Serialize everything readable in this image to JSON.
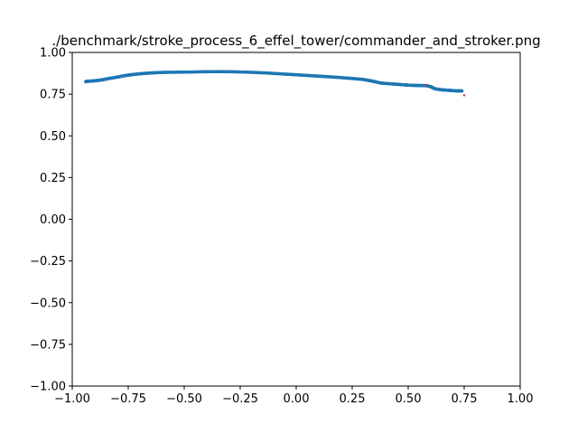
{
  "chart_data": {
    "type": "scatter",
    "title": "./benchmark/stroke_process_6_effel_tower/commander_and_stroker.png",
    "xlabel": "",
    "ylabel": "",
    "xlim": [
      -1.0,
      1.0
    ],
    "ylim": [
      -1.0,
      1.0
    ],
    "grid": false,
    "x_ticks": [
      -1.0,
      -0.75,
      -0.5,
      -0.25,
      0.0,
      0.25,
      0.5,
      0.75,
      1.0
    ],
    "x_tick_labels": [
      "−1.00",
      "−0.75",
      "−0.50",
      "−0.25",
      "0.00",
      "0.25",
      "0.50",
      "0.75",
      "1.00"
    ],
    "y_ticks": [
      -1.0,
      -0.75,
      -0.5,
      -0.25,
      0.0,
      0.25,
      0.5,
      0.75,
      1.0
    ],
    "y_tick_labels": [
      "−1.00",
      "−0.75",
      "−0.50",
      "−0.25",
      "0.00",
      "0.25",
      "0.50",
      "0.75",
      "1.00"
    ],
    "series": [
      {
        "color": "#1f77b4",
        "marker": "dot",
        "x": [
          -0.94,
          -0.93,
          -0.9,
          -0.87,
          -0.84,
          -0.8,
          -0.77,
          -0.74,
          -0.7,
          -0.66,
          -0.62,
          -0.58,
          -0.5,
          -0.42,
          -0.35,
          -0.28,
          -0.2,
          -0.12,
          -0.05,
          0.0,
          0.05,
          0.1,
          0.15,
          0.2,
          0.25,
          0.3,
          0.34,
          0.38,
          0.42,
          0.46,
          0.5,
          0.54,
          0.58,
          0.6,
          0.62,
          0.65,
          0.68,
          0.7,
          0.72,
          0.74
        ],
        "y": [
          0.825,
          0.827,
          0.83,
          0.835,
          0.843,
          0.852,
          0.86,
          0.866,
          0.872,
          0.876,
          0.879,
          0.881,
          0.882,
          0.884,
          0.885,
          0.884,
          0.881,
          0.876,
          0.87,
          0.866,
          0.862,
          0.858,
          0.854,
          0.849,
          0.844,
          0.838,
          0.828,
          0.816,
          0.812,
          0.808,
          0.804,
          0.802,
          0.801,
          0.795,
          0.782,
          0.776,
          0.773,
          0.771,
          0.77,
          0.769
        ]
      },
      {
        "color": "#d62728",
        "marker": "dot",
        "x": [
          0.58,
          0.75
        ],
        "y": [
          0.805,
          0.743
        ]
      }
    ]
  }
}
